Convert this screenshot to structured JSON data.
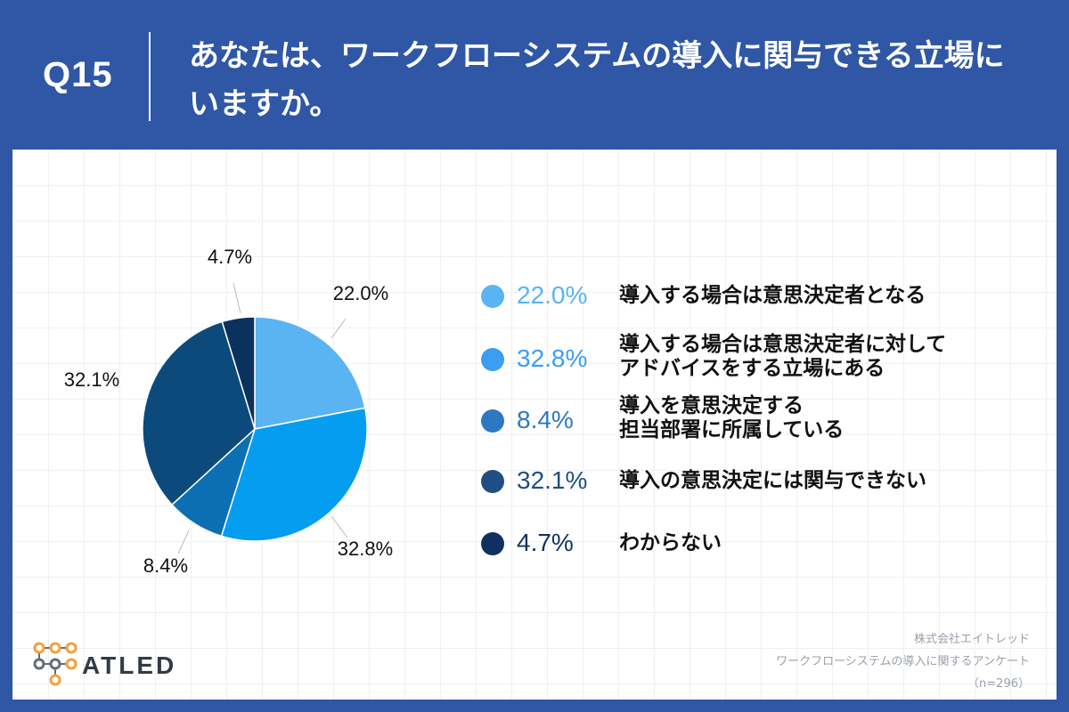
{
  "header": {
    "question_label": "Q15",
    "title_line1": "あなたは、ワークフローシステムの導入に関与できる立場に",
    "title_line2": "いますか。"
  },
  "chart_data": {
    "type": "pie",
    "title": "あなたは、ワークフローシステムの導入に関与できる立場にいますか。",
    "slices": [
      {
        "label": "導入する場合は意思決定者となる",
        "value": 22.0,
        "display": "22.0%",
        "color": "#5bb4f2"
      },
      {
        "label": "導入する場合は意思決定者に対してアドバイスをする立場にある",
        "value": 32.8,
        "display": "32.8%",
        "color": "#049df0"
      },
      {
        "label": "導入を意思決定する担当部署に所属している",
        "value": 8.4,
        "display": "8.4%",
        "color": "#0c6fb4"
      },
      {
        "label": "導入の意思決定には関与できない",
        "value": 32.1,
        "display": "32.1%",
        "color": "#0c4a7b"
      },
      {
        "label": "わからない",
        "value": 4.7,
        "display": "4.7%",
        "color": "#0b315d"
      }
    ]
  },
  "legend": [
    {
      "pct": "22.0%",
      "line1": "導入する場合は意思決定者となる",
      "line2": "",
      "color": "#5bb4f2"
    },
    {
      "pct": "32.8%",
      "line1": "導入する場合は意思決定者に対して",
      "line2": "アドバイスをする立場にある",
      "color": "#3b9ef0"
    },
    {
      "pct": "8.4%",
      "line1": "導入を意思決定する",
      "line2": "担当部署に所属している",
      "color": "#2d78c2"
    },
    {
      "pct": "32.1%",
      "line1": "導入の意思決定には関与できない",
      "line2": "",
      "color": "#1f4e85"
    },
    {
      "pct": "4.7%",
      "line1": "わからない",
      "line2": "",
      "color": "#10315d"
    }
  ],
  "footer": {
    "logo_text": "ATLED",
    "company": "株式会社エイトレッド",
    "survey": "ワークフローシステムの導入に関するアンケート",
    "sample": "（n=296）"
  },
  "colors": {
    "header_bg": "#2f57a5",
    "logo_accent": "#f0a33a"
  }
}
